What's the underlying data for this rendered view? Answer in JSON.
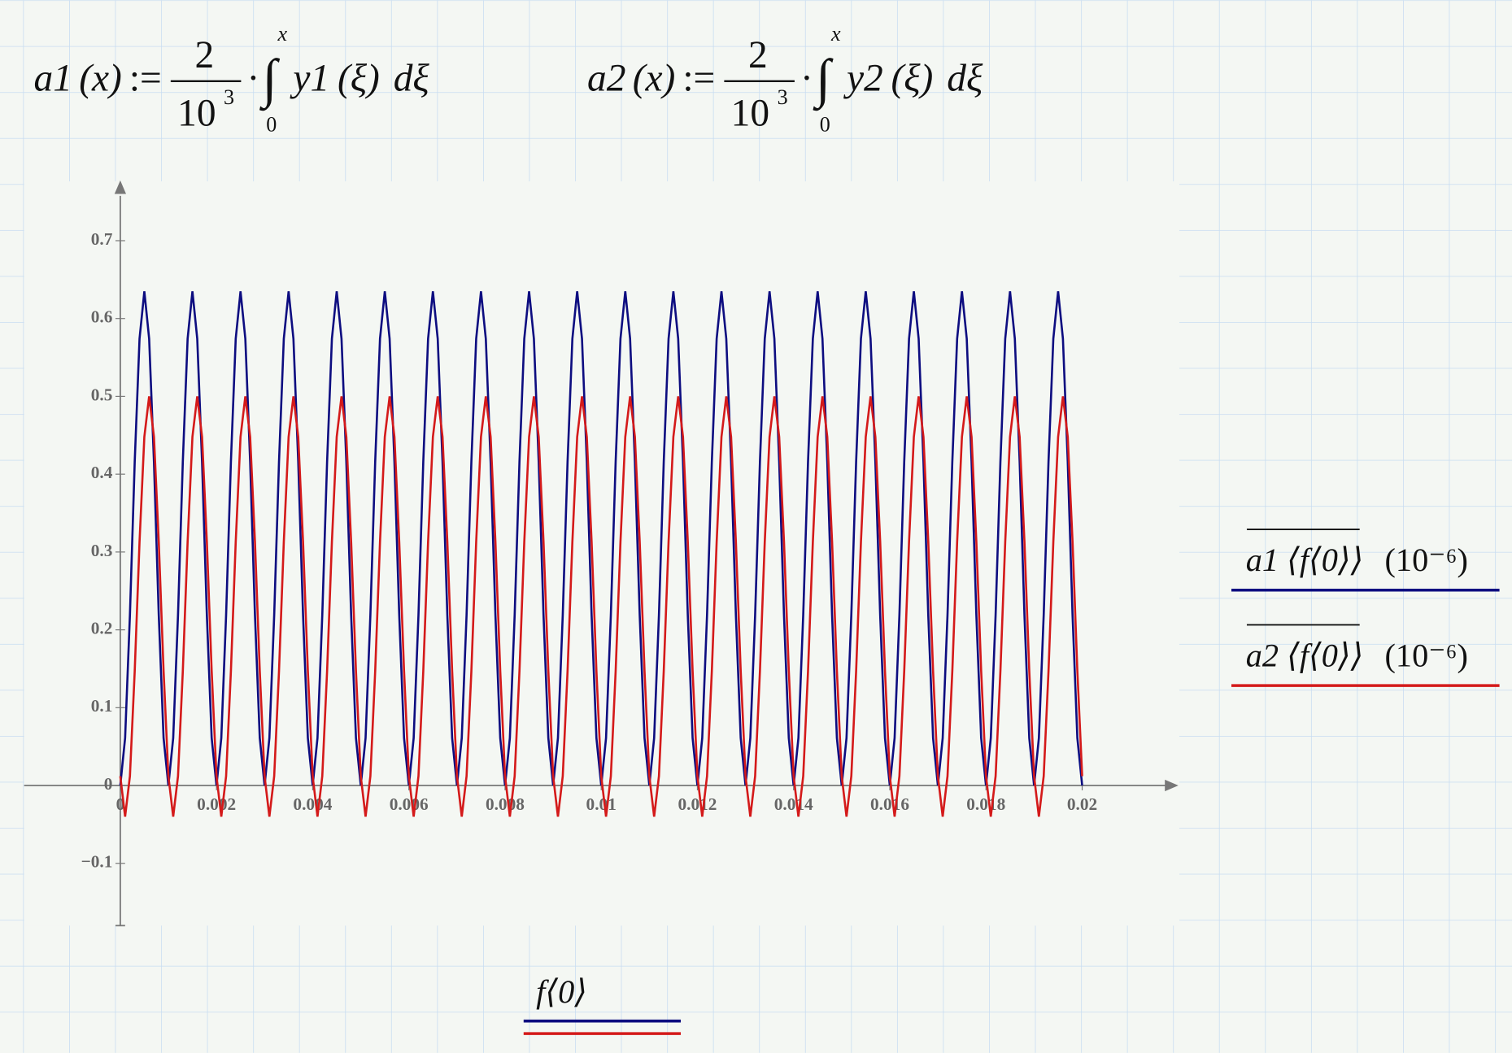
{
  "formulas": [
    {
      "lhs": "a1",
      "arg": "(x)",
      "assign": ":=",
      "numerator": "2",
      "denominator": "10",
      "exponent": "3",
      "dot": "·",
      "integral": "∫",
      "lower": "0",
      "upper": "x",
      "integrand": "y1",
      "integrand_arg": "(ξ)",
      "differential": "dξ"
    },
    {
      "lhs": "a2",
      "arg": "(x)",
      "assign": ":=",
      "numerator": "2",
      "denominator": "10",
      "exponent": "3",
      "dot": "·",
      "integral": "∫",
      "lower": "0",
      "upper": "x",
      "integrand": "y2",
      "integrand_arg": "(ξ)",
      "differential": "dξ"
    }
  ],
  "chart_data": {
    "type": "line",
    "x_label": "f⟨0⟩",
    "series_scale": "(10⁻⁶)",
    "xlim": [
      -0.002,
      0.022
    ],
    "ylim": [
      -0.18,
      0.77
    ],
    "xticks": [
      0,
      0.002,
      0.004,
      0.006,
      0.008,
      0.01,
      0.012,
      0.014,
      0.016,
      0.018,
      0.02
    ],
    "yticks": [
      {
        "value": -0.1,
        "label": "−0.1"
      },
      0,
      0.1,
      0.2,
      0.3,
      0.4,
      0.5,
      0.6,
      0.7
    ],
    "x": [
      0,
      0.0001,
      0.0002,
      0.0003,
      0.0004,
      0.0005,
      0.0006,
      0.0007,
      0.0008,
      0.0009,
      0.001,
      0.0011,
      0.0012,
      0.0013,
      0.0014,
      0.0015,
      0.0016,
      0.0017,
      0.0018,
      0.0019,
      0.002,
      0.0021,
      0.0022,
      0.0023,
      0.0024,
      0.0025,
      0.0026,
      0.0027,
      0.0028,
      0.0029,
      0.003,
      0.0031,
      0.0032,
      0.0033,
      0.0034,
      0.0035,
      0.0036,
      0.0037,
      0.0038,
      0.0039,
      0.004,
      0.0041,
      0.0042,
      0.0043,
      0.0044,
      0.0045,
      0.0046,
      0.0047,
      0.0048,
      0.0049,
      0.005,
      0.0051,
      0.0052,
      0.0053,
      0.0054,
      0.0055,
      0.0056,
      0.0057,
      0.0058,
      0.0059,
      0.006,
      0.0061,
      0.0062,
      0.0063,
      0.0064,
      0.0065,
      0.0066,
      0.0067,
      0.0068,
      0.0069,
      0.007,
      0.0071,
      0.0072,
      0.0073,
      0.0074,
      0.0075,
      0.0076,
      0.0077,
      0.0078,
      0.0079,
      0.008,
      0.0081,
      0.0082,
      0.0083,
      0.0084,
      0.0085,
      0.0086,
      0.0087,
      0.0088,
      0.0089,
      0.009,
      0.0091,
      0.0092,
      0.0093,
      0.0094,
      0.0095,
      0.0096,
      0.0097,
      0.0098,
      0.0099,
      0.01,
      0.0101,
      0.0102,
      0.0103,
      0.0104,
      0.0105,
      0.0106,
      0.0107,
      0.0108,
      0.0109,
      0.011,
      0.0111,
      0.0112,
      0.0113,
      0.0114,
      0.0115,
      0.0116,
      0.0117,
      0.0118,
      0.0119,
      0.012,
      0.0121,
      0.0122,
      0.0123,
      0.0124,
      0.0125,
      0.0126,
      0.0127,
      0.0128,
      0.0129,
      0.013,
      0.0131,
      0.0132,
      0.0133,
      0.0134,
      0.0135,
      0.0136,
      0.0137,
      0.0138,
      0.0139,
      0.014,
      0.0141,
      0.0142,
      0.0143,
      0.0144,
      0.0145,
      0.0146,
      0.0147,
      0.0148,
      0.0149,
      0.015,
      0.0151,
      0.0152,
      0.0153,
      0.0154,
      0.0155,
      0.0156,
      0.0157,
      0.0158,
      0.0159,
      0.016,
      0.0161,
      0.0162,
      0.0163,
      0.0164,
      0.0165,
      0.0166,
      0.0167,
      0.0168,
      0.0169,
      0.017,
      0.0171,
      0.0172,
      0.0173,
      0.0174,
      0.0175,
      0.0176,
      0.0177,
      0.0178,
      0.0179,
      0.018,
      0.0181,
      0.0182,
      0.0183,
      0.0184,
      0.0185,
      0.0186,
      0.0187,
      0.0188,
      0.0189,
      0.019,
      0.0191,
      0.0192,
      0.0193,
      0.0194,
      0.0195,
      0.0196,
      0.0197,
      0.0198,
      0.0199,
      0.02
    ],
    "series": [
      {
        "name": "a1 ⟨f⟨0⟩⟩",
        "color": "#0d0d80",
        "values": [
          0,
          0.061,
          0.219,
          0.416,
          0.574,
          0.635,
          0.574,
          0.416,
          0.219,
          0.061,
          0,
          0.061,
          0.219,
          0.416,
          0.574,
          0.635,
          0.574,
          0.416,
          0.219,
          0.061,
          0,
          0.061,
          0.219,
          0.416,
          0.574,
          0.635,
          0.574,
          0.416,
          0.219,
          0.061,
          0,
          0.061,
          0.219,
          0.416,
          0.574,
          0.635,
          0.574,
          0.416,
          0.219,
          0.061,
          0,
          0.061,
          0.219,
          0.416,
          0.574,
          0.635,
          0.574,
          0.416,
          0.219,
          0.061,
          0,
          0.061,
          0.219,
          0.416,
          0.574,
          0.635,
          0.574,
          0.416,
          0.219,
          0.061,
          0,
          0.061,
          0.219,
          0.416,
          0.574,
          0.635,
          0.574,
          0.416,
          0.219,
          0.061,
          0,
          0.061,
          0.219,
          0.416,
          0.574,
          0.635,
          0.574,
          0.416,
          0.219,
          0.061,
          0,
          0.061,
          0.219,
          0.416,
          0.574,
          0.635,
          0.574,
          0.416,
          0.219,
          0.061,
          0,
          0.061,
          0.219,
          0.416,
          0.574,
          0.635,
          0.574,
          0.416,
          0.219,
          0.061,
          0,
          0.061,
          0.219,
          0.416,
          0.574,
          0.635,
          0.574,
          0.416,
          0.219,
          0.061,
          0,
          0.061,
          0.219,
          0.416,
          0.574,
          0.635,
          0.574,
          0.416,
          0.219,
          0.061,
          0,
          0.061,
          0.219,
          0.416,
          0.574,
          0.635,
          0.574,
          0.416,
          0.219,
          0.061,
          0,
          0.061,
          0.219,
          0.416,
          0.574,
          0.635,
          0.574,
          0.416,
          0.219,
          0.061,
          0,
          0.061,
          0.219,
          0.416,
          0.574,
          0.635,
          0.574,
          0.416,
          0.219,
          0.061,
          0,
          0.061,
          0.219,
          0.416,
          0.574,
          0.635,
          0.574,
          0.416,
          0.219,
          0.061,
          0,
          0.061,
          0.219,
          0.416,
          0.574,
          0.635,
          0.574,
          0.416,
          0.219,
          0.061,
          0,
          0.061,
          0.219,
          0.416,
          0.574,
          0.635,
          0.574,
          0.416,
          0.219,
          0.061,
          0,
          0.061,
          0.219,
          0.416,
          0.574,
          0.635,
          0.574,
          0.416,
          0.219,
          0.061,
          0,
          0.061,
          0.219,
          0.416,
          0.574,
          0.635,
          0.574,
          0.416,
          0.219,
          0.061,
          0
        ]
      },
      {
        "name": "a2 ⟨f⟨0⟩⟩",
        "color": "#d41a1a",
        "values": [
          0.012,
          -0.04,
          0.012,
          0.147,
          0.313,
          0.448,
          0.5,
          0.448,
          0.313,
          0.147,
          0.012,
          -0.04,
          0.012,
          0.147,
          0.313,
          0.448,
          0.5,
          0.448,
          0.313,
          0.147,
          0.012,
          -0.04,
          0.012,
          0.147,
          0.313,
          0.448,
          0.5,
          0.448,
          0.313,
          0.147,
          0.012,
          -0.04,
          0.012,
          0.147,
          0.313,
          0.448,
          0.5,
          0.448,
          0.313,
          0.147,
          0.012,
          -0.04,
          0.012,
          0.147,
          0.313,
          0.448,
          0.5,
          0.448,
          0.313,
          0.147,
          0.012,
          -0.04,
          0.012,
          0.147,
          0.313,
          0.448,
          0.5,
          0.448,
          0.313,
          0.147,
          0.012,
          -0.04,
          0.012,
          0.147,
          0.313,
          0.448,
          0.5,
          0.448,
          0.313,
          0.147,
          0.012,
          -0.04,
          0.012,
          0.147,
          0.313,
          0.448,
          0.5,
          0.448,
          0.313,
          0.147,
          0.012,
          -0.04,
          0.012,
          0.147,
          0.313,
          0.448,
          0.5,
          0.448,
          0.313,
          0.147,
          0.012,
          -0.04,
          0.012,
          0.147,
          0.313,
          0.448,
          0.5,
          0.448,
          0.313,
          0.147,
          0.012,
          -0.04,
          0.012,
          0.147,
          0.313,
          0.448,
          0.5,
          0.448,
          0.313,
          0.147,
          0.012,
          -0.04,
          0.012,
          0.147,
          0.313,
          0.448,
          0.5,
          0.448,
          0.313,
          0.147,
          0.012,
          -0.04,
          0.012,
          0.147,
          0.313,
          0.448,
          0.5,
          0.448,
          0.313,
          0.147,
          0.012,
          -0.04,
          0.012,
          0.147,
          0.313,
          0.448,
          0.5,
          0.448,
          0.313,
          0.147,
          0.012,
          -0.04,
          0.012,
          0.147,
          0.313,
          0.448,
          0.5,
          0.448,
          0.313,
          0.147,
          0.012,
          -0.04,
          0.012,
          0.147,
          0.313,
          0.448,
          0.5,
          0.448,
          0.313,
          0.147,
          0.012,
          -0.04,
          0.012,
          0.147,
          0.313,
          0.448,
          0.5,
          0.448,
          0.313,
          0.147,
          0.012,
          -0.04,
          0.012,
          0.147,
          0.313,
          0.448,
          0.5,
          0.448,
          0.313,
          0.147,
          0.012,
          -0.04,
          0.012,
          0.147,
          0.313,
          0.448,
          0.5,
          0.448,
          0.313,
          0.147,
          0.012,
          -0.04,
          0.012,
          0.147,
          0.313,
          0.448,
          0.5,
          0.448,
          0.313,
          0.147,
          0.012
        ]
      }
    ]
  }
}
